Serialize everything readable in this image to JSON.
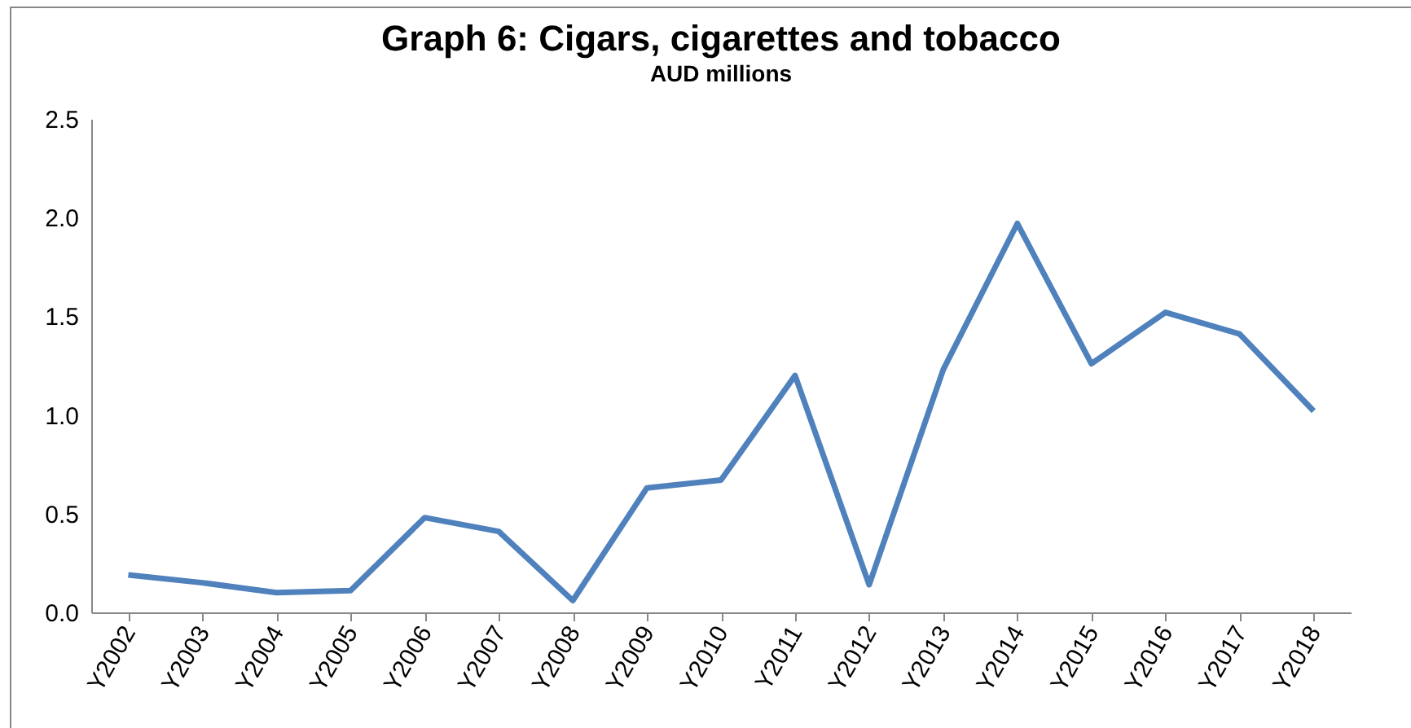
{
  "chart_data": {
    "type": "line",
    "title": "Graph 6: Cigars, cigarettes and tobacco",
    "subtitle": "AUD millions",
    "categories": [
      "Y2002",
      "Y2003",
      "Y2004",
      "Y2005",
      "Y2006",
      "Y2007",
      "Y2008",
      "Y2009",
      "Y2010",
      "Y2011",
      "Y2012",
      "Y2013",
      "Y2014",
      "Y2015",
      "Y2016",
      "Y2017",
      "Y2018"
    ],
    "series": [
      {
        "color": "#4f81bd",
        "values": [
          0.19,
          0.15,
          0.1,
          0.11,
          0.48,
          0.41,
          0.06,
          0.63,
          0.67,
          1.2,
          0.14,
          1.23,
          1.97,
          1.26,
          1.52,
          1.41,
          1.02
        ]
      }
    ],
    "ylim": [
      0,
      2.5
    ],
    "yticks": [
      {
        "value": 0,
        "label": "0.0"
      },
      {
        "value": 0.5,
        "label": "0.5"
      },
      {
        "value": 1,
        "label": "1.0"
      },
      {
        "value": 1.5,
        "label": "1.5"
      },
      {
        "value": 2,
        "label": "2.0"
      },
      {
        "value": 2.5,
        "label": "2.5"
      }
    ],
    "grid": false,
    "legend": false,
    "marker": "none",
    "line_style": "solid"
  }
}
